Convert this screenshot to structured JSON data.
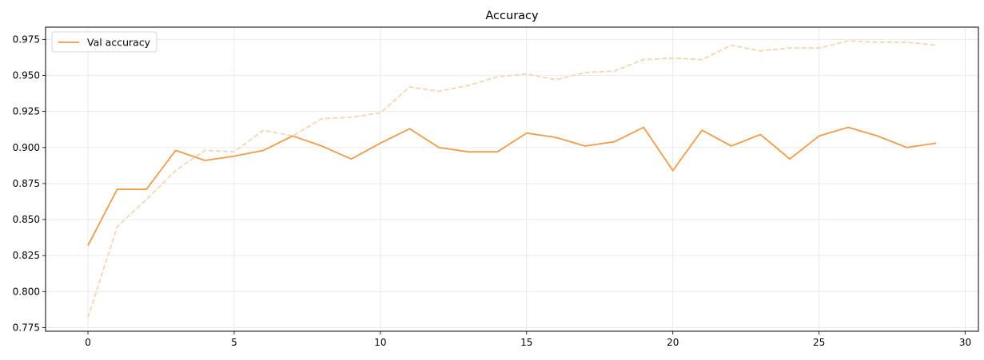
{
  "chart_data": {
    "type": "line",
    "title": "Accuracy",
    "xlabel": "",
    "ylabel": "",
    "xlim": [
      -1.45,
      30.45
    ],
    "ylim": [
      0.7725,
      0.9835
    ],
    "xticks": [
      0,
      5,
      10,
      15,
      20,
      25,
      30
    ],
    "yticks": [
      0.775,
      0.8,
      0.825,
      0.85,
      0.875,
      0.9,
      0.925,
      0.95,
      0.975
    ],
    "ytick_labels": [
      "0.775",
      "0.800",
      "0.825",
      "0.850",
      "0.875",
      "0.900",
      "0.925",
      "0.950",
      "0.975"
    ],
    "grid": true,
    "legend_position": "top-left",
    "x": [
      0,
      1,
      2,
      3,
      4,
      5,
      6,
      7,
      8,
      9,
      10,
      11,
      12,
      13,
      14,
      15,
      16,
      17,
      18,
      19,
      20,
      21,
      22,
      23,
      24,
      25,
      26,
      27,
      28,
      29
    ],
    "series": [
      {
        "name": "Val accuracy",
        "style": "solid",
        "color": "#f79a45",
        "in_legend": true,
        "values": [
          0.832,
          0.871,
          0.871,
          0.898,
          0.891,
          0.894,
          0.898,
          0.908,
          0.901,
          0.892,
          0.903,
          0.913,
          0.9,
          0.897,
          0.897,
          0.91,
          0.907,
          0.901,
          0.904,
          0.914,
          0.884,
          0.912,
          0.901,
          0.909,
          0.892,
          0.908,
          0.914,
          0.908,
          0.9,
          0.903
        ]
      },
      {
        "name": "",
        "style": "dashed",
        "color": "#fbd4b0",
        "in_legend": false,
        "values": [
          0.782,
          0.845,
          0.864,
          0.884,
          0.898,
          0.897,
          0.912,
          0.908,
          0.92,
          0.921,
          0.924,
          0.942,
          0.939,
          0.943,
          0.949,
          0.951,
          0.947,
          0.952,
          0.953,
          0.961,
          0.962,
          0.961,
          0.971,
          0.967,
          0.969,
          0.969,
          0.974,
          0.973,
          0.973,
          0.971
        ]
      }
    ]
  }
}
